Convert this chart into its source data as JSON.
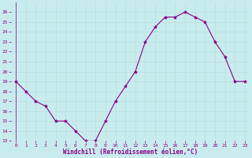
{
  "x": [
    0,
    1,
    2,
    3,
    4,
    5,
    6,
    7,
    8,
    9,
    10,
    11,
    12,
    13,
    14,
    15,
    16,
    17,
    18,
    19,
    20,
    21,
    22,
    23
  ],
  "y": [
    19,
    18,
    17,
    16.5,
    15,
    15,
    14,
    13,
    13,
    15,
    17,
    18.5,
    20,
    23,
    24.5,
    25.5,
    25.5,
    26,
    25.5,
    25,
    23,
    21.5,
    19,
    19
  ],
  "line_color": "#880088",
  "marker": "*",
  "marker_size": 3,
  "bg_color": "#c8ecee",
  "grid_color": "#aadddd",
  "xlabel": "Windchill (Refroidissement éolien,°C)",
  "xlabel_color": "#880088",
  "tick_color": "#880088",
  "ylim": [
    13,
    27
  ],
  "yticks": [
    13,
    14,
    15,
    16,
    17,
    18,
    19,
    20,
    21,
    22,
    23,
    24,
    25,
    26
  ],
  "xtick_labels": [
    "0",
    "1",
    "2",
    "3",
    "4",
    "5",
    "6",
    "7",
    "8",
    "9",
    "10",
    "11",
    "12",
    "13",
    "14",
    "15",
    "16",
    "17",
    "18",
    "19",
    "20",
    "21",
    "2223"
  ],
  "xticks": [
    0,
    1,
    2,
    3,
    4,
    5,
    6,
    7,
    8,
    9,
    10,
    11,
    12,
    13,
    14,
    15,
    16,
    17,
    18,
    19,
    20,
    21,
    22
  ],
  "xlim_min": -0.5,
  "xlim_max": 23.5
}
